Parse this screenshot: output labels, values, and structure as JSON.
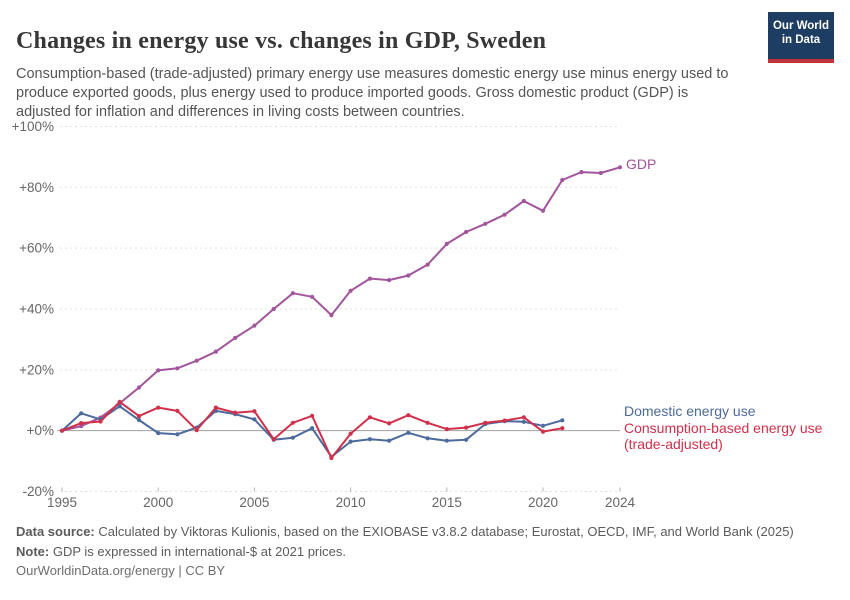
{
  "header": {
    "title": "Changes in energy use vs. changes in GDP, Sweden",
    "subtitle": "Consumption-based (trade-adjusted) primary energy use measures domestic energy use minus energy used to produce exported goods, plus energy used to produce imported goods. Gross domestic product (GDP) is adjusted for inflation and differences in living costs between countries.",
    "logo": {
      "lines": [
        "Our World",
        "in Data"
      ],
      "navy": "#1d3d63",
      "red": "#c0333b"
    }
  },
  "chart_data": {
    "type": "line",
    "title": "Changes in energy use vs. changes in GDP, Sweden",
    "xlabel": "",
    "ylabel": "",
    "xlim": [
      1995,
      2024
    ],
    "ylim": [
      -20,
      100
    ],
    "grid": "horizontal-dashed",
    "legend_position": "right-of-line-ends",
    "x_ticks": [
      1995,
      2000,
      2005,
      2010,
      2015,
      2020,
      2024
    ],
    "y_ticks": [
      {
        "value": 100,
        "label": "+100%"
      },
      {
        "value": 80,
        "label": "+80%"
      },
      {
        "value": 60,
        "label": "+60%"
      },
      {
        "value": 40,
        "label": "+40%"
      },
      {
        "value": 20,
        "label": "+20%"
      },
      {
        "value": 0,
        "label": "+0%"
      },
      {
        "value": -20,
        "label": "-20%"
      }
    ],
    "colors": {
      "grid": "#e0e0e0",
      "zero_line": "#a1a1a1",
      "tick": "#b5b5b5"
    },
    "series": [
      {
        "name": "GDP",
        "slug": "gdp",
        "color": "#a2559c",
        "label_lines": [
          "GDP"
        ],
        "years": [
          1995,
          1996,
          1997,
          1998,
          1999,
          2000,
          2001,
          2002,
          2003,
          2004,
          2005,
          2006,
          2007,
          2008,
          2009,
          2010,
          2011,
          2012,
          2013,
          2014,
          2015,
          2016,
          2017,
          2018,
          2019,
          2020,
          2021,
          2022,
          2023,
          2024
        ],
        "values": [
          0,
          1.5,
          4.3,
          9,
          14.2,
          19.8,
          20.5,
          23,
          26,
          30.5,
          34.5,
          40,
          45.2,
          44,
          38,
          46,
          50,
          49.5,
          51,
          54.6,
          61.4,
          65.3,
          68,
          71,
          75.5,
          72.3,
          82.4,
          85,
          84.7,
          86.6
        ]
      },
      {
        "name": "Domestic energy use",
        "slug": "domestic-energy-use",
        "color": "#4c6a9c",
        "label_lines": [
          "Domestic energy use"
        ],
        "years": [
          1995,
          1996,
          1997,
          1998,
          1999,
          2000,
          2001,
          2002,
          2003,
          2004,
          2005,
          2006,
          2007,
          2008,
          2009,
          2010,
          2011,
          2012,
          2013,
          2014,
          2015,
          2016,
          2017,
          2018,
          2019,
          2020,
          2021
        ],
        "values": [
          0,
          5.7,
          3.7,
          8,
          3.5,
          -0.8,
          -1.2,
          1,
          6.5,
          5.4,
          3.7,
          -3,
          -2.3,
          0.8,
          -8.6,
          -3.6,
          -2.8,
          -3.3,
          -0.7,
          -2.5,
          -3.3,
          -3,
          2.2,
          3.1,
          2.9,
          1.6,
          3.4
        ]
      },
      {
        "name": "Consumption-based energy use (trade-adjusted)",
        "slug": "consumption-based-energy-use",
        "color": "#d0304a",
        "label_lines": [
          "Consumption-based energy use",
          "(trade-adjusted)"
        ],
        "years": [
          1995,
          1996,
          1997,
          1998,
          1999,
          2000,
          2001,
          2002,
          2003,
          2004,
          2005,
          2006,
          2007,
          2008,
          2009,
          2010,
          2011,
          2012,
          2013,
          2014,
          2015,
          2016,
          2017,
          2018,
          2019,
          2020,
          2021
        ],
        "values": [
          0,
          2.5,
          3,
          9.5,
          4.8,
          7.6,
          6.5,
          0.2,
          7.6,
          5.9,
          6.4,
          -2.8,
          2.6,
          4.9,
          -9,
          -1,
          4.4,
          2.4,
          5.1,
          2.6,
          0.5,
          1,
          2.6,
          3.3,
          4.4,
          -0.3,
          0.8
        ]
      }
    ]
  },
  "footer": {
    "data_source_label": "Data source:",
    "data_source_text": "Calculated by Viktoras Kulionis, based on the EXIOBASE v3.8.2 database; Eurostat, OECD, IMF, and World Bank (2025)",
    "note_label": "Note:",
    "note_text": "GDP is expressed in international-$ at 2021 prices.",
    "license_text": "OurWorldinData.org/energy | CC BY"
  }
}
